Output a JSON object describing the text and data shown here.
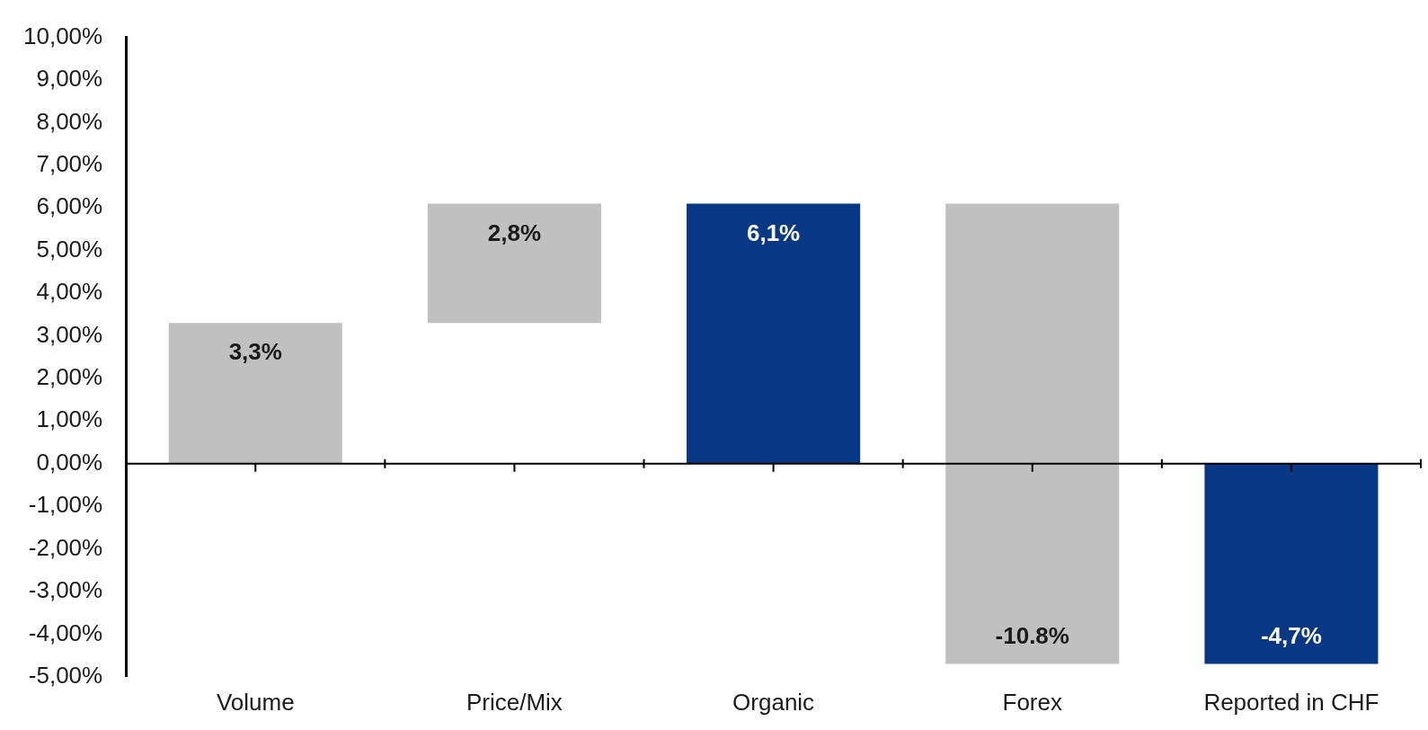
{
  "chart_data": {
    "type": "bar",
    "categories": [
      "Volume",
      "Price/Mix",
      "Organic",
      "Forex",
      "Reported in CHF"
    ],
    "values": [
      3.3,
      2.8,
      6.1,
      -10.8,
      -4.7
    ],
    "base": [
      0,
      3.3,
      0,
      6.1,
      0
    ],
    "colors": [
      "#c0c0c0",
      "#c0c0c0",
      "#083885",
      "#c0c0c0",
      "#083885"
    ],
    "value_labels": [
      "3,3%",
      "2,8%",
      "6,1%",
      "-10.8%",
      "-4,7%"
    ],
    "ylim": [
      -5,
      10
    ],
    "yticks": [
      {
        "value": -5,
        "label": "-5,00%"
      },
      {
        "value": -4,
        "label": "-4,00%"
      },
      {
        "value": -3,
        "label": "-3,00%"
      },
      {
        "value": -2,
        "label": "-2,00%"
      },
      {
        "value": -1,
        "label": "-1,00%"
      },
      {
        "value": 0,
        "label": "0,00%"
      },
      {
        "value": 1,
        "label": "1,00%"
      },
      {
        "value": 2,
        "label": "2,00%"
      },
      {
        "value": 3,
        "label": "3,00%"
      },
      {
        "value": 4,
        "label": "4,00%"
      },
      {
        "value": 5,
        "label": "5,00%"
      },
      {
        "value": 6,
        "label": "6,00%"
      },
      {
        "value": 7,
        "label": "7,00%"
      },
      {
        "value": 8,
        "label": "8,00%"
      },
      {
        "value": 9,
        "label": "9,00%"
      },
      {
        "value": 10,
        "label": "10,00%"
      }
    ],
    "legend": false
  }
}
